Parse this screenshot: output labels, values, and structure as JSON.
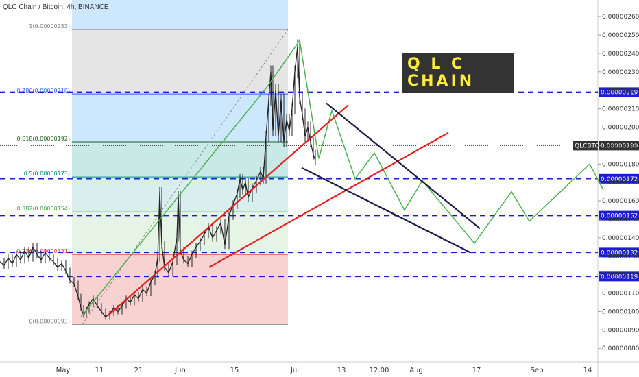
{
  "header": {
    "title": "QLC Chain / Bitcoin, 4h, BINANCE"
  },
  "banner": {
    "text": "Q L C  CHAIN"
  },
  "colors": {
    "candles": "#222222",
    "projection": "#4caf50",
    "trend_red": "#e81c1c",
    "channel": "#1a1a4b",
    "hline_blue": "#1c1cd6",
    "label_blue": "#1c1cd6",
    "symbol_label": "#333333",
    "banner_bg": "#ffeb3b",
    "banner_text": "#333333"
  },
  "chart_data": {
    "type": "line",
    "symbol": "QLCBTC",
    "ylim": [
      7.6e-07,
      2.66e-06
    ],
    "y_ticks": [
      "0.00000260",
      "0.00000250",
      "0.00000240",
      "0.00000230",
      "0.00000220",
      "0.00000210",
      "0.00000200",
      "0.00000190",
      "0.00000180",
      "0.00000170",
      "0.00000160",
      "0.00000150",
      "0.00000140",
      "0.00000130",
      "0.00000120",
      "0.00000110",
      "0.00000100",
      "0.00000090",
      "0.00000080"
    ],
    "x_ticks": [
      "May",
      "11",
      "21",
      "Jun",
      "15",
      "Jul",
      "13",
      "12:00",
      "Aug",
      "17",
      "Sep",
      "14"
    ],
    "current_price": {
      "label": "QLCBTC",
      "value": "0.00000190"
    },
    "horizontal_levels": [
      "0.00000219",
      "0.00000172",
      "0.00000152",
      "0.00000132",
      "0.00000119"
    ],
    "fib_levels": [
      {
        "label": "1(0.00000253)",
        "value": 2.53e-06,
        "color": "#787b86"
      },
      {
        "label": "0.786(0.00000218)",
        "value": 2.18e-06,
        "color": "#2962ff"
      },
      {
        "label": "0.618(0.00000192)",
        "value": 1.92e-06,
        "color": "#1b5e20"
      },
      {
        "label": "0.5(0.00000173)",
        "value": 1.73e-06,
        "color": "#00897b"
      },
      {
        "label": "0.382(0.00000154)",
        "value": 1.54e-06,
        "color": "#43a047"
      },
      {
        "label": "0.236(0.00000131)",
        "value": 1.31e-06,
        "color": "#e53935"
      },
      {
        "label": "0(0.00000093)",
        "value": 9.3e-07,
        "color": "#787b86"
      }
    ],
    "price_series": [
      [
        0,
        1.27e-06
      ],
      [
        6,
        1.25e-06
      ],
      [
        12,
        1.29e-06
      ],
      [
        18,
        1.26e-06
      ],
      [
        24,
        1.31e-06
      ],
      [
        30,
        1.28e-06
      ],
      [
        36,
        1.33e-06
      ],
      [
        42,
        1.29e-06
      ],
      [
        48,
        1.35e-06
      ],
      [
        54,
        1.31e-06
      ],
      [
        60,
        1.28e-06
      ],
      [
        66,
        1.32e-06
      ],
      [
        72,
        1.29e-06
      ],
      [
        78,
        1.27e-06
      ],
      [
        84,
        1.24e-06
      ],
      [
        90,
        1.26e-06
      ],
      [
        96,
        1.22e-06
      ],
      [
        102,
        1.17e-06
      ],
      [
        108,
        1.15e-06
      ],
      [
        114,
        1.08e-06
      ],
      [
        118,
        1.02e-06
      ],
      [
        122,
        9.8e-07
      ],
      [
        126,
        1.01e-06
      ],
      [
        130,
        1.04e-06
      ],
      [
        136,
        1.07e-06
      ],
      [
        142,
        1.03e-06
      ],
      [
        148,
        1e-06
      ],
      [
        154,
        9.7e-07
      ],
      [
        160,
        9.9e-07
      ],
      [
        166,
        1.02e-06
      ],
      [
        172,
        1e-06
      ],
      [
        178,
        1.03e-06
      ],
      [
        184,
        1.07e-06
      ],
      [
        190,
        1.05e-06
      ],
      [
        196,
        1.09e-06
      ],
      [
        202,
        1.07e-06
      ],
      [
        208,
        1.12e-06
      ],
      [
        214,
        1.1e-06
      ],
      [
        220,
        1.16e-06
      ],
      [
        226,
        1.2e-06
      ],
      [
        230,
        1.29e-06
      ],
      [
        233,
        1.65e-06
      ],
      [
        236,
        1.36e-06
      ],
      [
        240,
        1.24e-06
      ],
      [
        246,
        1.21e-06
      ],
      [
        252,
        1.27e-06
      ],
      [
        258,
        1.4e-06
      ],
      [
        260,
        1.63e-06
      ],
      [
        263,
        1.33e-06
      ],
      [
        268,
        1.28e-06
      ],
      [
        274,
        1.26e-06
      ],
      [
        280,
        1.31e-06
      ],
      [
        286,
        1.35e-06
      ],
      [
        292,
        1.38e-06
      ],
      [
        298,
        1.42e-06
      ],
      [
        304,
        1.46e-06
      ],
      [
        310,
        1.4e-06
      ],
      [
        316,
        1.44e-06
      ],
      [
        322,
        1.48e-06
      ],
      [
        328,
        1.36e-06
      ],
      [
        334,
        1.52e-06
      ],
      [
        340,
        1.58e-06
      ],
      [
        346,
        1.64e-06
      ],
      [
        350,
        1.72e-06
      ],
      [
        354,
        1.66e-06
      ],
      [
        358,
        1.7e-06
      ],
      [
        362,
        1.62e-06
      ],
      [
        368,
        1.67e-06
      ],
      [
        374,
        1.71e-06
      ],
      [
        380,
        1.76e-06
      ],
      [
        384,
        1.72e-06
      ],
      [
        388,
        1.95e-06
      ],
      [
        392,
        2.15e-06
      ],
      [
        395,
        2.3e-06
      ],
      [
        398,
        1.98e-06
      ],
      [
        402,
        2.2e-06
      ],
      [
        406,
        1.95e-06
      ],
      [
        410,
        2.15e-06
      ],
      [
        414,
        1.92e-06
      ],
      [
        418,
        2.04e-06
      ],
      [
        422,
        1.98e-06
      ],
      [
        426,
        2.1e-06
      ],
      [
        430,
        2.3e-06
      ],
      [
        434,
        2.44e-06
      ],
      [
        437,
        2.16e-06
      ],
      [
        441,
        2.07e-06
      ],
      [
        445,
        1.95e-06
      ],
      [
        449,
        2e-06
      ],
      [
        453,
        1.92e-06
      ],
      [
        457,
        1.85e-06
      ],
      [
        460,
        1.82e-06
      ]
    ],
    "projection": [
      [
        118,
        9.7e-07
      ],
      [
        390,
        2.22e-06
      ],
      [
        437,
        2.47e-06
      ],
      [
        465,
        1.83e-06
      ],
      [
        484,
        2.09e-06
      ],
      [
        518,
        1.72e-06
      ],
      [
        546,
        1.86e-06
      ],
      [
        590,
        1.55e-06
      ],
      [
        616,
        1.71e-06
      ],
      [
        692,
        1.37e-06
      ],
      [
        746,
        1.65e-06
      ],
      [
        772,
        1.49e-06
      ],
      [
        860,
        1.8e-06
      ],
      [
        880,
        1.66e-06
      ]
    ],
    "trendlines_red": [
      {
        "from": [
          158,
          9.8e-07
        ],
        "to": [
          508,
          2.12e-06
        ]
      },
      {
        "from": [
          305,
          1.24e-06
        ],
        "to": [
          654,
          1.97e-06
        ]
      }
    ],
    "channel_lines": [
      {
        "from": [
          476,
          2.13e-06
        ],
        "to": [
          700,
          1.45e-06
        ]
      },
      {
        "from": [
          440,
          1.78e-06
        ],
        "to": [
          686,
          1.32e-06
        ]
      }
    ],
    "fib_tool": {
      "x_start": 105,
      "x_end": 420
    }
  }
}
